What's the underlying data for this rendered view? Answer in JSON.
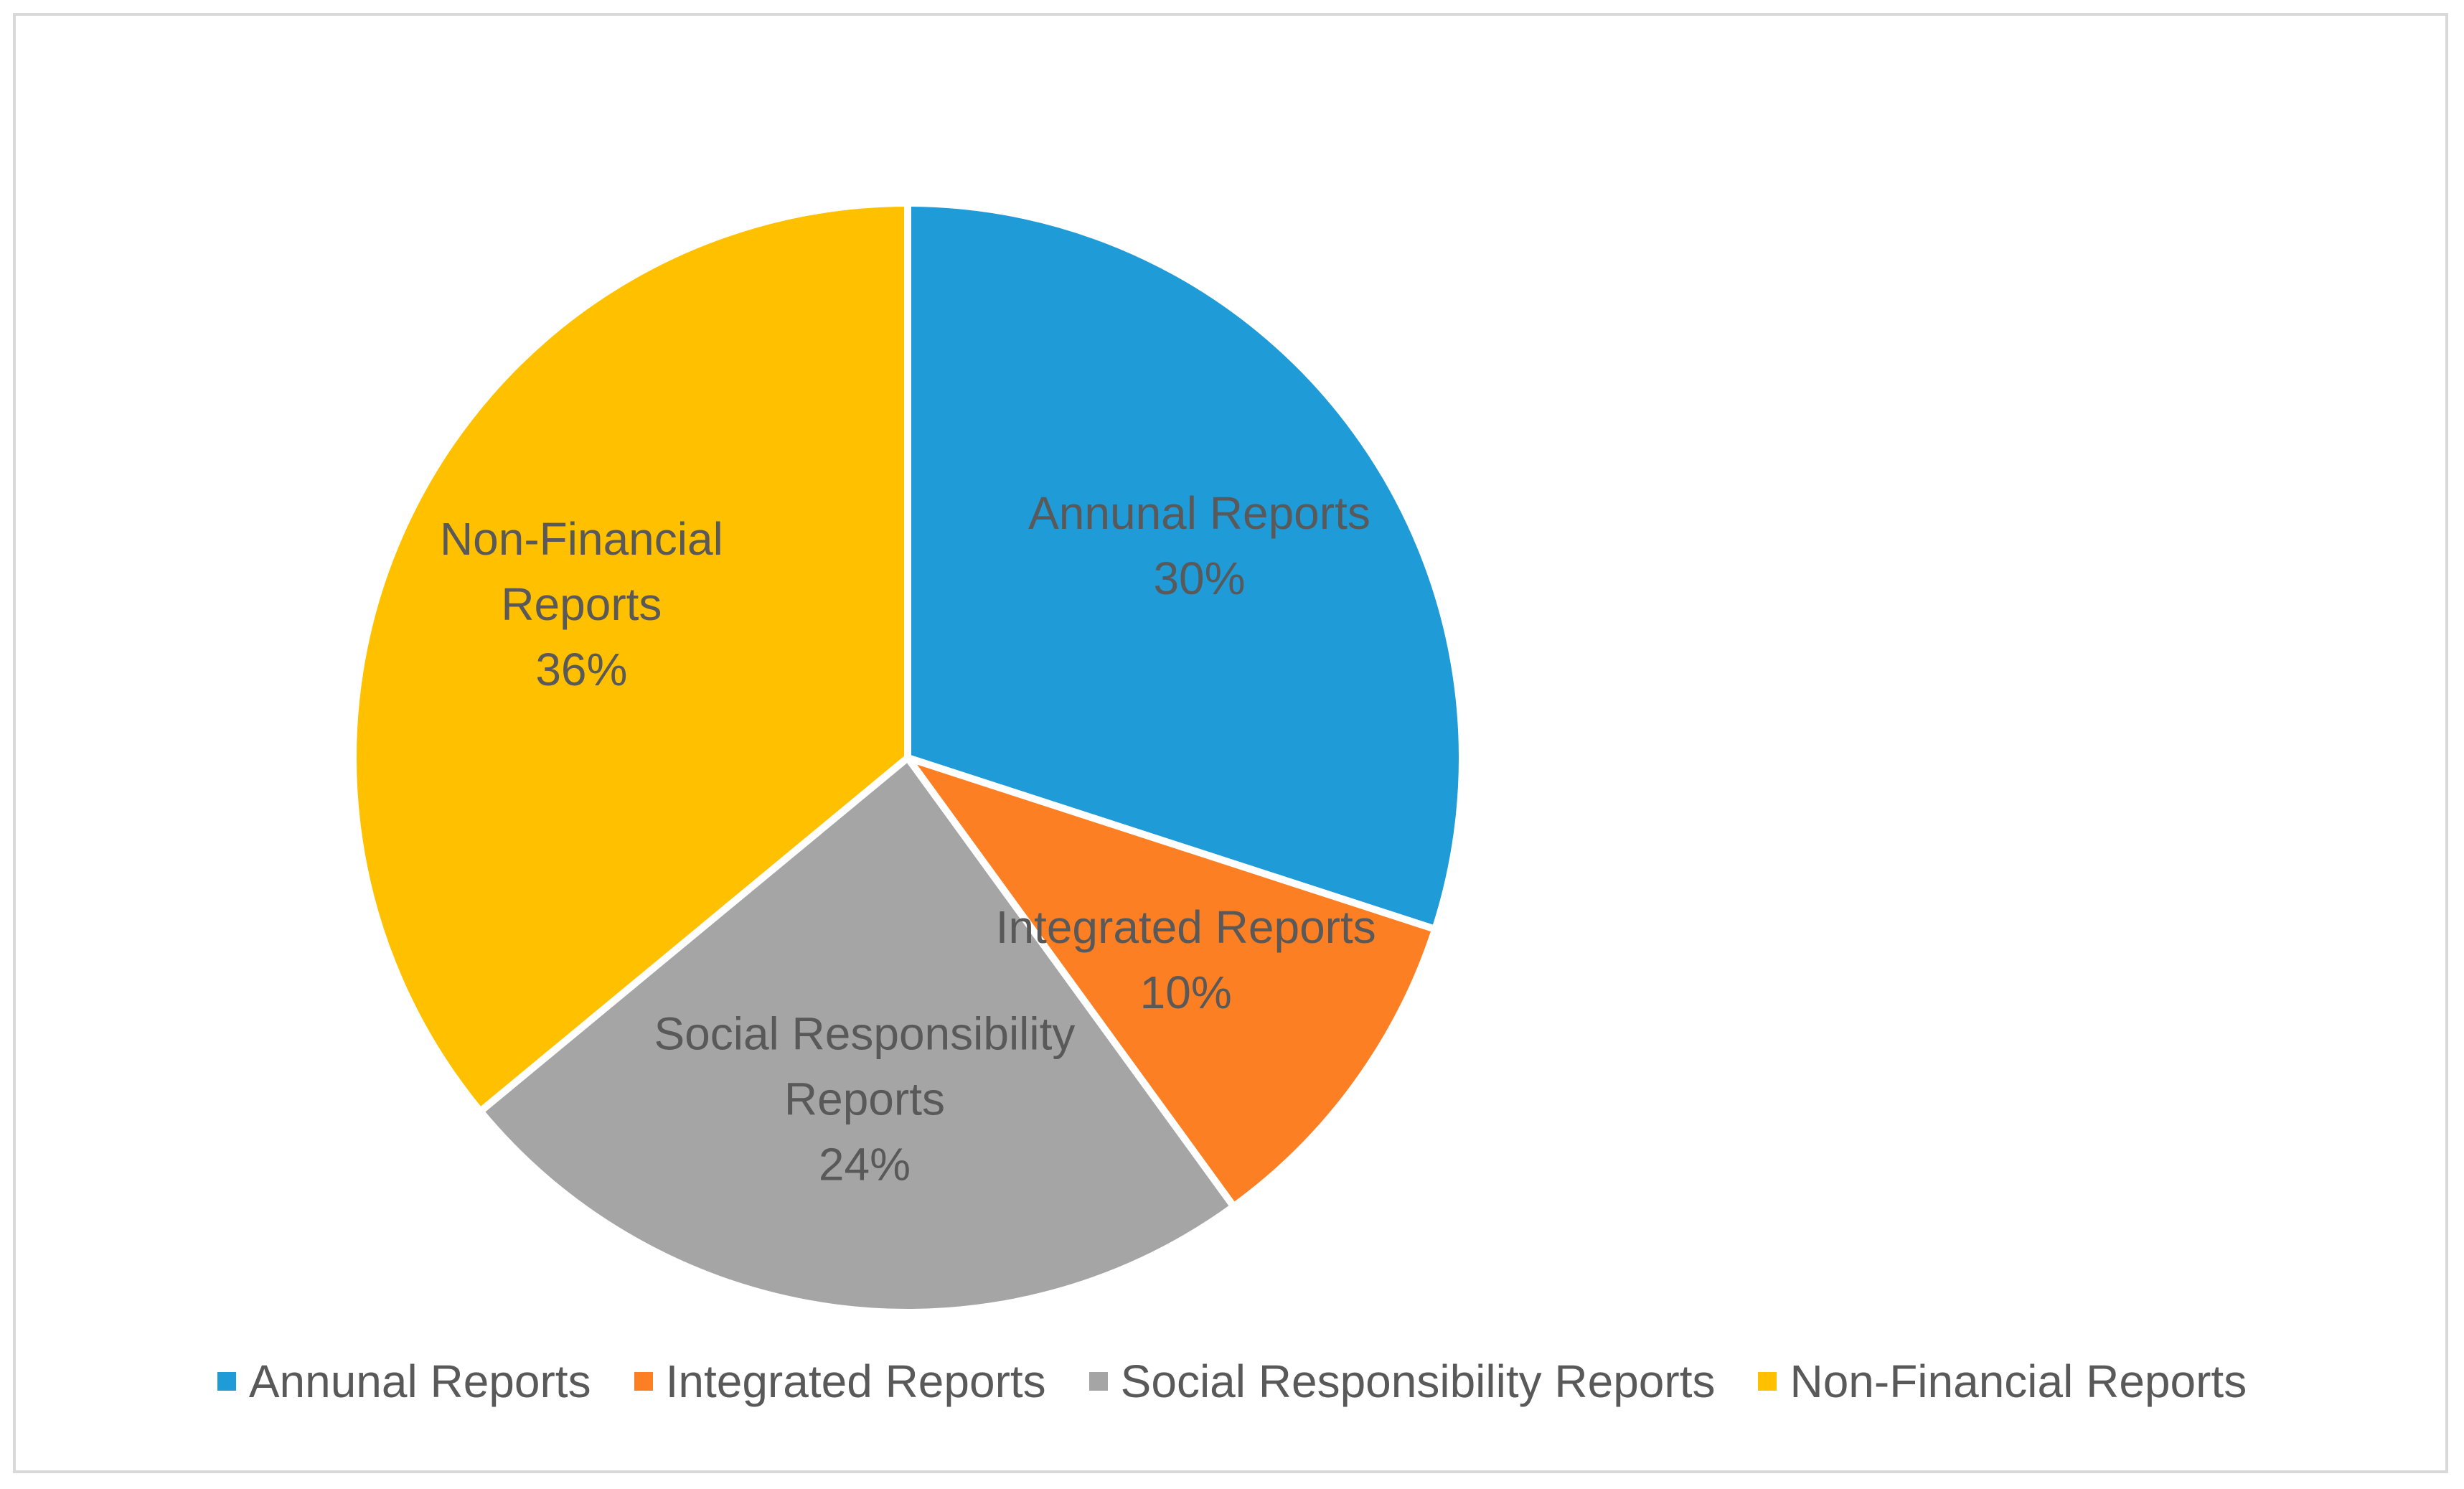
{
  "chart_data": {
    "type": "pie",
    "title": "",
    "categories": [
      "Annunal Reports",
      "Integrated Reports",
      "Social Responsibility Reports",
      "Non-Financial Reports"
    ],
    "values": [
      30,
      10,
      24,
      36
    ],
    "value_labels": [
      "30%",
      "10%",
      "24%",
      "36%"
    ],
    "slice_label_lines": [
      [
        "Annunal Reports"
      ],
      [
        "Integrated Reports"
      ],
      [
        "Social Responsibility",
        "Reports"
      ],
      [
        "Non-Financial",
        "Reports"
      ]
    ],
    "colors": [
      "#1f9bd7",
      "#fd7f23",
      "#a5a5a5",
      "#ffc000"
    ],
    "start_angle_deg": 0,
    "direction": "clockwise",
    "legend_position": "bottom"
  },
  "legend": {
    "items": [
      {
        "label": "Annunal Reports",
        "color": "#1f9bd7"
      },
      {
        "label": "Integrated Reports",
        "color": "#fd7f23"
      },
      {
        "label": "Social Responsibility Reports",
        "color": "#a5a5a5"
      },
      {
        "label": "Non-Financial Reports",
        "color": "#ffc000"
      }
    ]
  }
}
